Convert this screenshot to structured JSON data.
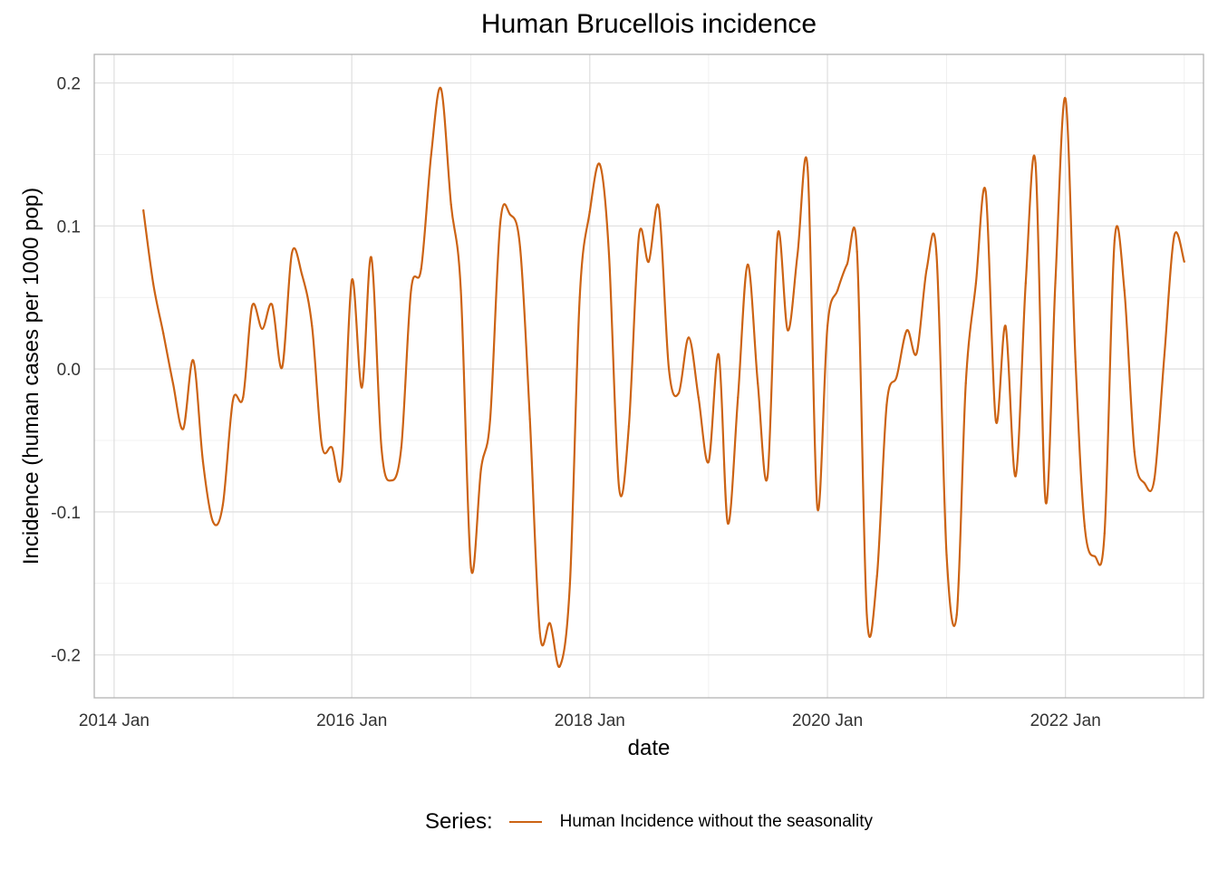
{
  "chart_data": {
    "type": "line",
    "title": "Human Brucellois incidence",
    "xlabel": "date",
    "ylabel": "Incidence (human cases per 1000 pop)",
    "xlim": [
      "2013-11-01",
      "2023-03-01"
    ],
    "ylim": [
      -0.23,
      0.22
    ],
    "x_ticks": [
      {
        "date": "2014-01-01",
        "label": "2014 Jan"
      },
      {
        "date": "2016-01-01",
        "label": "2016 Jan"
      },
      {
        "date": "2018-01-01",
        "label": "2018 Jan"
      },
      {
        "date": "2020-01-01",
        "label": "2020 Jan"
      },
      {
        "date": "2022-01-01",
        "label": "2022 Jan"
      }
    ],
    "y_ticks": [
      {
        "value": -0.2,
        "label": "-0.2"
      },
      {
        "value": -0.1,
        "label": "-0.1"
      },
      {
        "value": 0.0,
        "label": "0.0"
      },
      {
        "value": 0.1,
        "label": "0.1"
      },
      {
        "value": 0.2,
        "label": "0.2"
      }
    ],
    "grid": true,
    "legend_title": "Series:",
    "legend_position": "bottom",
    "series": [
      {
        "name": "Human Incidence without the seasonality",
        "color": "#CC6314",
        "points": [
          [
            "2014-04-01",
            0.111
          ],
          [
            "2014-05-01",
            0.06
          ],
          [
            "2014-06-01",
            0.025
          ],
          [
            "2014-07-01",
            -0.01
          ],
          [
            "2014-08-01",
            -0.042
          ],
          [
            "2014-09-01",
            0.006
          ],
          [
            "2014-10-01",
            -0.065
          ],
          [
            "2014-11-01",
            -0.107
          ],
          [
            "2014-12-01",
            -0.095
          ],
          [
            "2015-01-01",
            -0.022
          ],
          [
            "2015-02-01",
            -0.02
          ],
          [
            "2015-03-01",
            0.044
          ],
          [
            "2015-04-01",
            0.028
          ],
          [
            "2015-05-01",
            0.045
          ],
          [
            "2015-06-01",
            0.001
          ],
          [
            "2015-07-01",
            0.081
          ],
          [
            "2015-08-01",
            0.066
          ],
          [
            "2015-09-01",
            0.03
          ],
          [
            "2015-10-01",
            -0.053
          ],
          [
            "2015-11-01",
            -0.055
          ],
          [
            "2015-12-01",
            -0.073
          ],
          [
            "2016-01-01",
            0.062
          ],
          [
            "2016-02-01",
            -0.013
          ],
          [
            "2016-03-01",
            0.078
          ],
          [
            "2016-04-01",
            -0.055
          ],
          [
            "2016-05-01",
            -0.078
          ],
          [
            "2016-06-01",
            -0.055
          ],
          [
            "2016-07-01",
            0.055
          ],
          [
            "2016-08-01",
            0.07
          ],
          [
            "2016-09-01",
            0.15
          ],
          [
            "2016-10-01",
            0.196
          ],
          [
            "2016-11-01",
            0.115
          ],
          [
            "2016-12-01",
            0.055
          ],
          [
            "2017-01-01",
            -0.139
          ],
          [
            "2017-02-01",
            -0.07
          ],
          [
            "2017-03-01",
            -0.035
          ],
          [
            "2017-04-01",
            0.102
          ],
          [
            "2017-05-01",
            0.108
          ],
          [
            "2017-06-01",
            0.085
          ],
          [
            "2017-07-01",
            -0.035
          ],
          [
            "2017-08-01",
            -0.185
          ],
          [
            "2017-09-01",
            -0.178
          ],
          [
            "2017-10-01",
            -0.208
          ],
          [
            "2017-11-01",
            -0.15
          ],
          [
            "2017-12-01",
            0.05
          ],
          [
            "2018-01-01",
            0.11
          ],
          [
            "2018-02-01",
            0.143
          ],
          [
            "2018-03-01",
            0.08
          ],
          [
            "2018-04-01",
            -0.083
          ],
          [
            "2018-05-01",
            -0.04
          ],
          [
            "2018-06-01",
            0.093
          ],
          [
            "2018-07-01",
            0.075
          ],
          [
            "2018-08-01",
            0.113
          ],
          [
            "2018-09-01",
            0.0
          ],
          [
            "2018-10-01",
            -0.017
          ],
          [
            "2018-11-01",
            0.022
          ],
          [
            "2018-12-01",
            -0.02
          ],
          [
            "2019-01-01",
            -0.065
          ],
          [
            "2019-02-01",
            0.01
          ],
          [
            "2019-03-01",
            -0.108
          ],
          [
            "2019-04-01",
            -0.02
          ],
          [
            "2019-05-01",
            0.073
          ],
          [
            "2019-06-01",
            -0.01
          ],
          [
            "2019-07-01",
            -0.075
          ],
          [
            "2019-08-01",
            0.094
          ],
          [
            "2019-09-01",
            0.027
          ],
          [
            "2019-10-01",
            0.08
          ],
          [
            "2019-11-01",
            0.141
          ],
          [
            "2019-12-01",
            -0.097
          ],
          [
            "2020-01-01",
            0.03
          ],
          [
            "2020-02-01",
            0.055
          ],
          [
            "2020-03-01",
            0.073
          ],
          [
            "2020-04-01",
            0.082
          ],
          [
            "2020-05-01",
            -0.172
          ],
          [
            "2020-06-01",
            -0.145
          ],
          [
            "2020-07-01",
            -0.025
          ],
          [
            "2020-08-01",
            -0.005
          ],
          [
            "2020-09-01",
            0.027
          ],
          [
            "2020-10-01",
            0.011
          ],
          [
            "2020-11-01",
            0.07
          ],
          [
            "2020-12-01",
            0.08
          ],
          [
            "2021-01-01",
            -0.13
          ],
          [
            "2021-02-01",
            -0.172
          ],
          [
            "2021-03-01",
            -0.01
          ],
          [
            "2021-04-01",
            0.06
          ],
          [
            "2021-05-01",
            0.124
          ],
          [
            "2021-06-01",
            -0.036
          ],
          [
            "2021-07-01",
            0.03
          ],
          [
            "2021-08-01",
            -0.075
          ],
          [
            "2021-09-01",
            0.06
          ],
          [
            "2021-10-01",
            0.144
          ],
          [
            "2021-11-01",
            -0.093
          ],
          [
            "2021-12-01",
            0.06
          ],
          [
            "2022-01-01",
            0.189
          ],
          [
            "2022-02-01",
            0.005
          ],
          [
            "2022-03-01",
            -0.11
          ],
          [
            "2022-04-01",
            -0.131
          ],
          [
            "2022-05-01",
            -0.115
          ],
          [
            "2022-06-01",
            0.09
          ],
          [
            "2022-07-01",
            0.055
          ],
          [
            "2022-08-01",
            -0.058
          ],
          [
            "2022-09-01",
            -0.08
          ],
          [
            "2022-10-01",
            -0.077
          ],
          [
            "2022-11-01",
            0.01
          ],
          [
            "2022-12-01",
            0.093
          ],
          [
            "2023-01-01",
            0.075
          ]
        ]
      }
    ]
  }
}
